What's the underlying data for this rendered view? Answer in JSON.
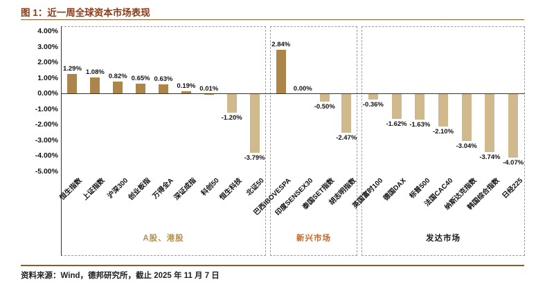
{
  "figure": {
    "title": "图 1：近一周全球资本市场表现",
    "source_note": "资料来源：Wind，德邦研究所，截止 2025 年 11 月 7 日"
  },
  "colors": {
    "title": "#8C3A16",
    "rule": "#8A5A28",
    "axis": "#333333",
    "box_border": "#9a9a9a",
    "bar_positive": "#AC854B",
    "bar_negative": "#D0B98C"
  },
  "chart_data": {
    "type": "bar",
    "title": "近一周全球资本市场表现",
    "unit": "%",
    "ylim": [
      -5,
      4
    ],
    "ytick_step": 1,
    "grid": false,
    "legend": false,
    "ytick_labels": [
      "4.00%",
      "3.00%",
      "2.00%",
      "1.00%",
      "0.00%",
      "-1.00%",
      "-2.00%",
      "-3.00%",
      "-4.00%",
      "-5.00%"
    ],
    "groups": [
      {
        "label": "A股、港股",
        "label_color": "#B08E4F",
        "categories": [
          "恒生指数",
          "上证指数",
          "沪深300",
          "创业板指",
          "万得全A",
          "深证成指",
          "科创50",
          "恒生科技",
          "北证50"
        ],
        "values": [
          1.29,
          1.08,
          0.82,
          0.65,
          0.63,
          0.19,
          0.01,
          -1.2,
          -3.79
        ]
      },
      {
        "label": "新兴市场",
        "label_color": "#C4672B",
        "categories": [
          "巴西IBOVESPA",
          "印度SENSEX30",
          "泰国SET指数",
          "胡志明指数"
        ],
        "values": [
          2.84,
          0.0,
          -0.5,
          -2.47
        ]
      },
      {
        "label": "发达市场",
        "label_color": "#1a1a1a",
        "categories": [
          "英国富时100",
          "德国DAX",
          "标普500",
          "法国CAC40",
          "纳斯达克指数",
          "韩国综合指数",
          "日经225"
        ],
        "values": [
          -0.36,
          -1.62,
          -1.63,
          -2.1,
          -3.04,
          -3.74,
          -4.07
        ]
      }
    ]
  }
}
